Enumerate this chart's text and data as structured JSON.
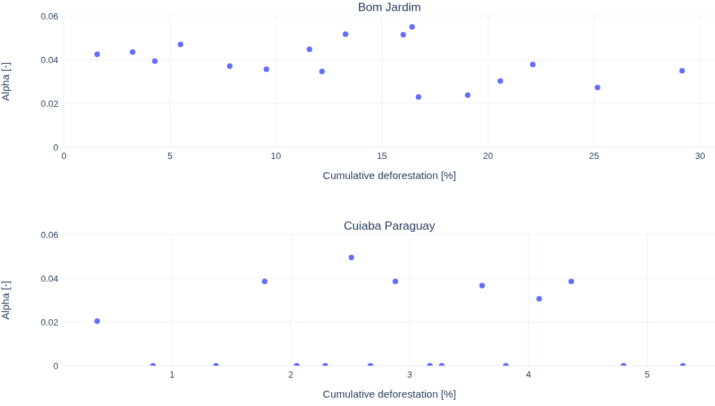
{
  "chart_data": [
    {
      "type": "scatter",
      "title": "Bom Jardim",
      "xlabel": "Cumulative deforestation [%]",
      "ylabel": "Alpha [-]",
      "xlim": [
        0,
        30.7
      ],
      "xticks": [
        0,
        5,
        10,
        15,
        20,
        25,
        30
      ],
      "ylim": [
        0,
        0.06
      ],
      "yticks": [
        0,
        0.02,
        0.04,
        0.06
      ],
      "grid": true,
      "marker": "circle",
      "color": "#636efa",
      "x": [
        1.57,
        3.24,
        4.29,
        5.5,
        7.82,
        9.55,
        11.58,
        12.17,
        13.28,
        16.0,
        16.42,
        16.72,
        19.04,
        20.58,
        22.11,
        25.16,
        29.15
      ],
      "values": [
        0.0425,
        0.0435,
        0.0394,
        0.047,
        0.0371,
        0.0356,
        0.0448,
        0.0346,
        0.0517,
        0.0514,
        0.055,
        0.0229,
        0.0238,
        0.0302,
        0.0378,
        0.0273,
        0.0349
      ]
    },
    {
      "type": "scatter",
      "title": "Cuiaba Paraguay",
      "xlabel": "Cumulative deforestation [%]",
      "ylabel": "Alpha [-]",
      "xlim": [
        0.09,
        5.57
      ],
      "xticks": [
        1,
        2,
        3,
        4,
        5
      ],
      "ylim": [
        0,
        0.06
      ],
      "yticks": [
        0,
        0.02,
        0.04,
        0.06
      ],
      "grid": true,
      "marker": "circle",
      "color": "#636efa",
      "x": [
        0.37,
        0.84,
        1.37,
        1.78,
        2.05,
        2.29,
        2.51,
        2.67,
        2.88,
        3.17,
        3.27,
        3.61,
        3.81,
        4.09,
        4.36,
        4.8,
        5.3
      ],
      "values": [
        0.0204,
        0,
        0,
        0.0386,
        0,
        0,
        0.0495,
        0,
        0.0386,
        0,
        0,
        0.0367,
        0,
        0.0306,
        0.0386,
        0,
        0
      ]
    }
  ]
}
